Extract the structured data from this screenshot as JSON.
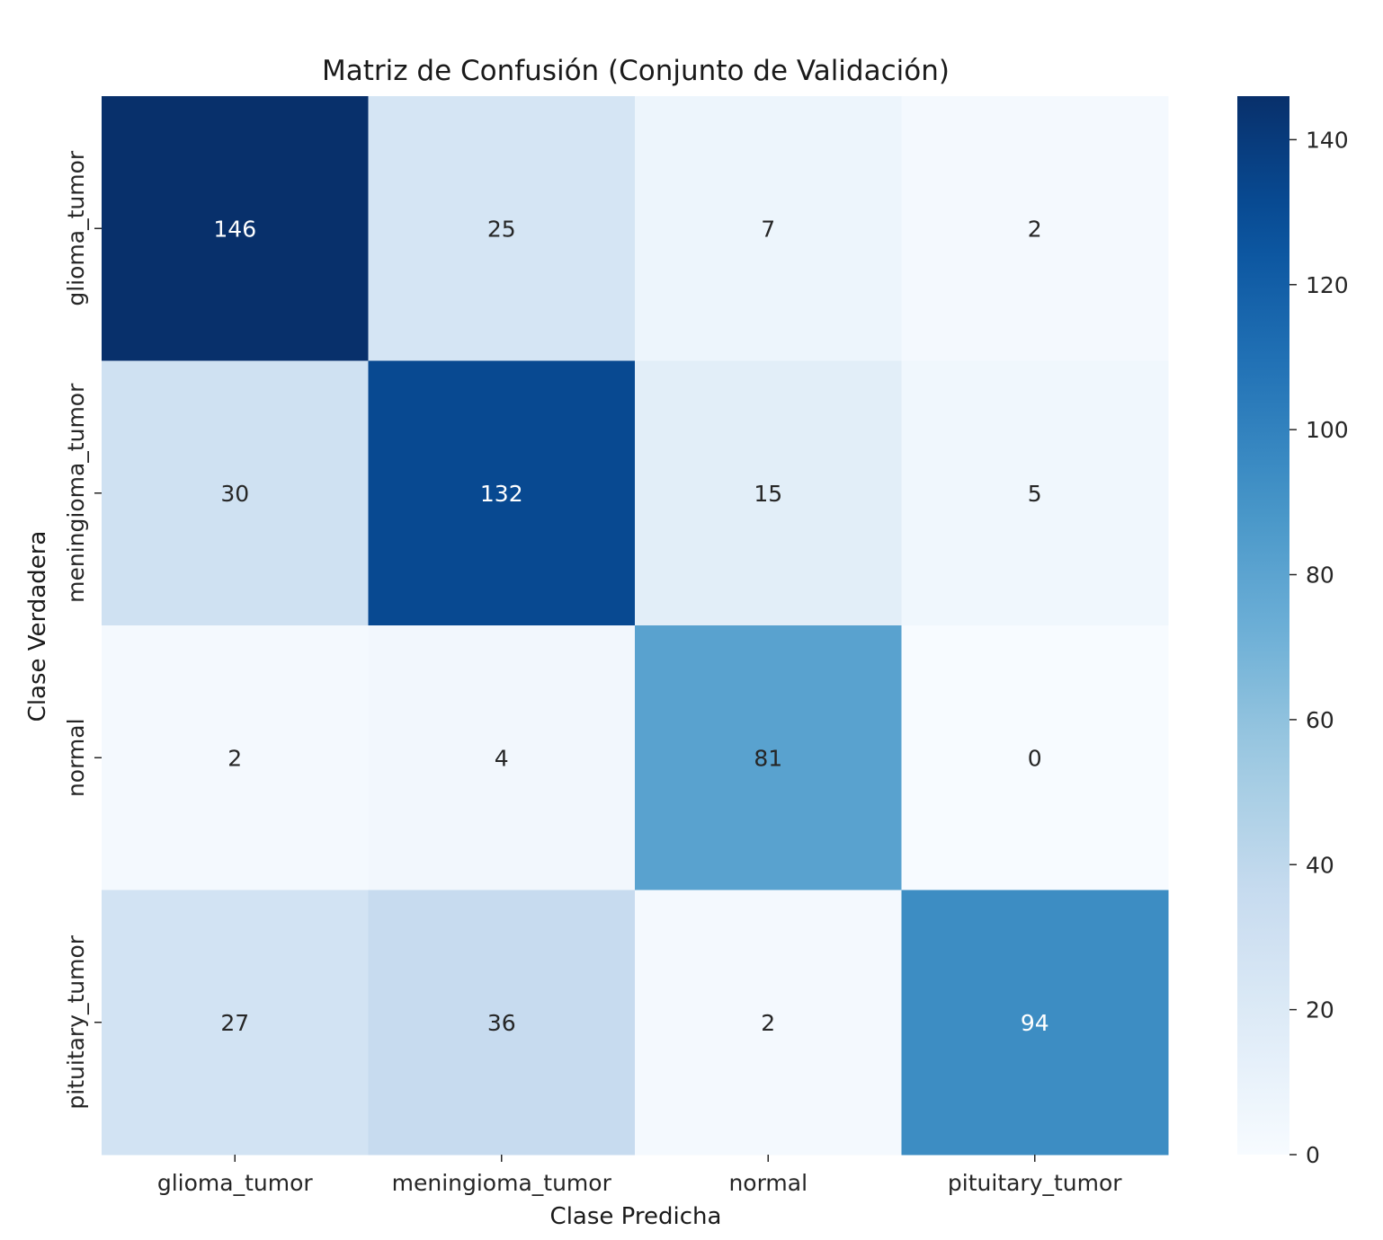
{
  "chart_data": {
    "type": "heatmap",
    "title": "Matriz de Confusión (Conjunto de Validación)",
    "xlabel": "Clase Predicha",
    "ylabel": "Clase Verdadera",
    "x_categories": [
      "glioma_tumor",
      "meningioma_tumor",
      "normal",
      "pituitary_tumor"
    ],
    "y_categories": [
      "glioma_tumor",
      "meningioma_tumor",
      "normal",
      "pituitary_tumor"
    ],
    "values": [
      [
        146,
        25,
        7,
        2
      ],
      [
        30,
        132,
        15,
        5
      ],
      [
        2,
        4,
        81,
        0
      ],
      [
        27,
        36,
        2,
        94
      ]
    ],
    "colormap": "Blues",
    "vmin": 0,
    "vmax": 146,
    "colorbar_ticks": [
      0,
      20,
      40,
      60,
      80,
      100,
      120,
      140
    ]
  }
}
